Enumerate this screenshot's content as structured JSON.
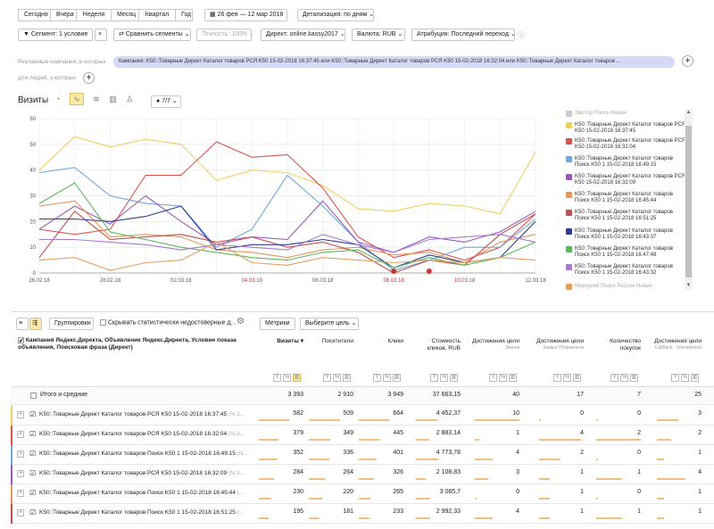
{
  "periods": [
    "Сегодня",
    "Вчера",
    "Неделя",
    "Месяц",
    "Квартал",
    "Год"
  ],
  "date_range": "26 фев — 12 мар 2018",
  "detail": "Детализация: по дням",
  "segment": "Сегмент: 1 условие",
  "compare": "Сравнить сегменты",
  "accuracy": "Точность: 100%",
  "direct": "Директ: online.kassy2017",
  "currency": "Валюта: RUB",
  "attribution": "Атрибуция: Последний переход",
  "filter_label": "Рекламные кампании, в которых",
  "filter_value": "Кампания: K50::Товарные Директ Каталог товаров РСЯ K50 15-02-2018 16:37:45 или K50::Товарные Директ Каталог товаров РСЯ K50 15-02-2018 16:32:04 или K50::Товарные Директ Каталог товаров ...",
  "people_label": "для людей, у которых",
  "plus": "+",
  "close_x": "×",
  "visits_title": "Визиты",
  "metric_count": "7/7",
  "chart_data": {
    "type": "line",
    "x": [
      "26.02.18",
      "27.02.18",
      "28.02.18",
      "01.03.18",
      "02.03.18",
      "03.03.18",
      "04.03.18",
      "05.03.18",
      "06.03.18",
      "07.03.18",
      "08.03.18",
      "09.03.18",
      "10.03.18",
      "11.03.18",
      "12.03.18"
    ],
    "x_ticks": [
      "26.02.18",
      "28.02.18",
      "02.03.18",
      "04.03.18",
      "06.03.18",
      "08.03.18",
      "10.03.18",
      "12.03.18"
    ],
    "weekend_ticks": [
      "04.03.18",
      "08.03.18",
      "10.03.18"
    ],
    "ylim": [
      0,
      60
    ],
    "y_ticks": [
      0,
      10,
      20,
      30,
      40,
      50,
      60
    ],
    "grid": true,
    "series": [
      {
        "color": "#f0d060",
        "values": [
          40,
          53,
          49,
          52,
          50,
          36,
          40,
          39,
          34,
          25,
          24,
          27,
          26,
          23,
          47
        ]
      },
      {
        "color": "#d9544f",
        "values": [
          17,
          15,
          17,
          38,
          38,
          51,
          45,
          46,
          33,
          14,
          6,
          9,
          5,
          10,
          23
        ]
      },
      {
        "color": "#6fa8dc",
        "values": [
          39,
          41,
          30,
          27,
          26,
          10,
          17,
          38,
          26,
          12,
          1,
          5,
          10,
          10,
          21
        ]
      },
      {
        "color": "#9b59b6",
        "values": [
          17,
          26,
          19,
          30,
          20,
          11,
          14,
          13,
          28,
          12,
          8,
          14,
          12,
          16,
          24
        ]
      },
      {
        "color": "#e8965a",
        "values": [
          26,
          28,
          14,
          15,
          14,
          9,
          8,
          6,
          9,
          10,
          7,
          8,
          4,
          12,
          15
        ]
      },
      {
        "color": "#c0504d",
        "values": [
          6,
          24,
          13,
          14,
          15,
          12,
          14,
          10,
          12,
          8,
          0,
          5,
          3,
          15,
          23
        ]
      },
      {
        "color": "#2c3e8c",
        "values": [
          21,
          21,
          20,
          22,
          26,
          9,
          11,
          11,
          13,
          11,
          2,
          7,
          4,
          6,
          20
        ]
      },
      {
        "color": "#5cb85c",
        "values": [
          27,
          35,
          16,
          13,
          10,
          8,
          6,
          5,
          8,
          9,
          2,
          6,
          3,
          6,
          12
        ]
      },
      {
        "color": "#a87bd0",
        "values": [
          13,
          13,
          12,
          11,
          9,
          11,
          10,
          9,
          15,
          11,
          8,
          13,
          14,
          15,
          12
        ]
      },
      {
        "color": "#e0a060",
        "values": [
          5,
          6,
          1,
          4,
          5,
          12,
          4,
          3,
          6,
          5,
          4,
          5,
          4,
          6,
          5
        ]
      }
    ]
  },
  "legend": [
    {
      "label": "Эвотор Поиск Новая",
      "color": "#cccccc",
      "faded": true
    },
    {
      "label": "K50::Товарные Директ Каталог товаров РСЯ K50 15-02-2018 16:37:45",
      "color": "#f0d060"
    },
    {
      "label": "K50::Товарные Директ Каталог товаров РСЯ K50 15-02-2018 16:32:04",
      "color": "#d9544f"
    },
    {
      "label": "K50::Товарные Директ Каталог товаров Поиск K50 1 15-02-2018 16:49:15",
      "color": "#6fa8dc"
    },
    {
      "label": "K50::Товарные Директ Каталог товаров РСЯ K50 15-02-2018 16:32:09",
      "color": "#9b59b6"
    },
    {
      "label": "K50::Товарные Директ Каталог товаров Поиск K50 1 15-02-2018 16:45:44",
      "color": "#e8965a"
    },
    {
      "label": "K50::Товарные Директ Каталог товаров Поиск K50 1 15-02-2018 16:51:25",
      "color": "#c0504d"
    },
    {
      "label": "K50::Товарные Директ Каталог товаров Поиск K50 1 15-02-2018 16:43:37",
      "color": "#2c3e8c"
    },
    {
      "label": "K50::Товарные Директ Каталог товаров Поиск K50 1 15-02-2018 16:47:48",
      "color": "#5cb85c"
    },
    {
      "label": "K50::Товарные Директ Каталог товаров Поиск K50 1 15-02-2018 16:43:32",
      "color": "#a87bd0"
    },
    {
      "label": "Меркурий Поиск Россия Новая",
      "color": "#e0a060",
      "faded": true
    }
  ],
  "groupings": "Группировки",
  "hide_stats": "Скрывать статистически недостоверные д...",
  "metrics": "Метрики",
  "goal_select": "Выберите цель",
  "table": {
    "group_header": "Кампания Яндекс.Директа, Объявление Яндекс.Директа, Условие показа объявления, Поисковая фраза (Директ)",
    "columns": [
      {
        "label": "Визиты",
        "sub": ""
      },
      {
        "label": "Посетители",
        "sub": ""
      },
      {
        "label": "Клики",
        "sub": ""
      },
      {
        "label": "Стоимость кликов, RUB",
        "sub": ""
      },
      {
        "label": "Достижения цели",
        "sub": "Звонок"
      },
      {
        "label": "Достижения цели",
        "sub": "Заявка Отправлена"
      },
      {
        "label": "Количество покупок",
        "sub": ""
      },
      {
        "label": "Достижения цели",
        "sub": "CallBack - Streamwood"
      }
    ],
    "totals_label": "Итого и средние",
    "totals": [
      "3 393",
      "2 910",
      "3 949",
      "37 663,15",
      "40",
      "17",
      "7",
      "25"
    ],
    "rows": [
      {
        "name": "K50::Товарные Директ Каталог товаров РСЯ K50 15-02-2018 16:37:45",
        "suffix": "(N-3...",
        "color": "#f0d060",
        "values": [
          "582",
          "509",
          "664",
          "4 452,37",
          "10",
          "0",
          "0",
          "3"
        ]
      },
      {
        "name": "K50::Товарные Директ Каталог товаров РСЯ K50 15-02-2018 16:32:04",
        "suffix": "(N-3...",
        "color": "#d9544f",
        "values": [
          "379",
          "349",
          "445",
          "2 883,14",
          "1",
          "4",
          "2",
          "2"
        ]
      },
      {
        "name": "K50::Товарные Директ Каталог товаров Поиск K50 1 15-02-2018 16:49:15",
        "suffix": "(N...",
        "color": "#6fa8dc",
        "values": [
          "352",
          "336",
          "401",
          "4 773,78",
          "4",
          "2",
          "0",
          "1"
        ]
      },
      {
        "name": "K50::Товарные Директ Каталог товаров РСЯ K50 15-02-2018 16:32:09",
        "suffix": "(N-3...",
        "color": "#9b59b6",
        "values": [
          "284",
          "264",
          "326",
          "2 108,83",
          "3",
          "1",
          "1",
          "4"
        ]
      },
      {
        "name": "K50::Товарные Директ Каталог товаров Поиск K50 1 15-02-2018 16:45:44",
        "suffix": "(...",
        "color": "#e8965a",
        "values": [
          "230",
          "220",
          "265",
          "3 065,7",
          "0",
          "1",
          "0",
          "1"
        ]
      },
      {
        "name": "K50::Товарные Директ Каталог товаров Поиск K50 1 15-02-2018 16:51:25",
        "suffix": "(...",
        "color": "#c0504d",
        "values": [
          "195",
          "181",
          "233",
          "2 992,33",
          "4",
          "1",
          "1",
          "1"
        ]
      }
    ]
  }
}
